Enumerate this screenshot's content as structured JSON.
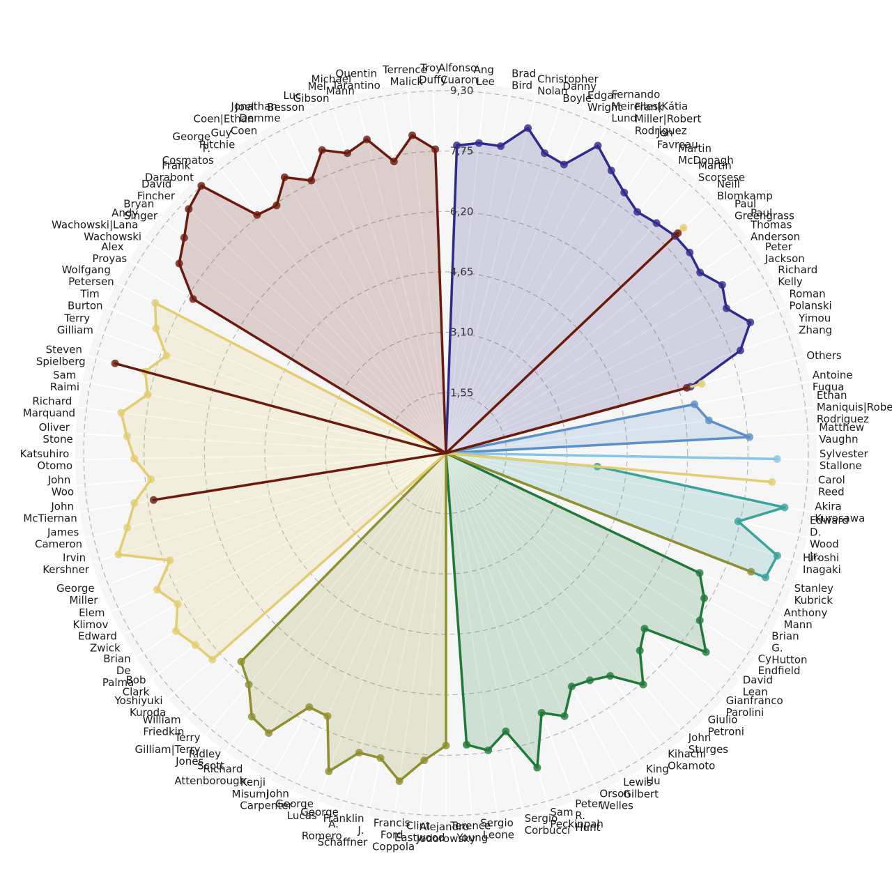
{
  "chart_data": {
    "type": "radar",
    "categories": [
      "Alfonso Cuaron",
      "Ang Lee",
      "Brad Bird",
      "Christopher Nolan",
      "Danny Boyle",
      "Edgar Wright",
      "Fernando Meirelles|Kátia Lund",
      "Frank Miller|Robert Rodriguez",
      "Jon Favreau",
      "Martin McDonagh",
      "Martin Scorsese",
      "Neill Blomkamp",
      "Paul Greengrass",
      "Paul Thomas Anderson",
      "Peter Jackson",
      "Richard Kelly",
      "Roman Polanski",
      "Yimou Zhang",
      "Others",
      "Antoine Fuqua",
      "Ethan Maniquis|Robert Rodriguez",
      "Matthew Vaughn",
      "Sylvester Stallone",
      "Carol Reed",
      "Akira Kurosawa",
      "Edward D. Wood Jr.",
      "Hiroshi Inagaki",
      "Stanley Kubrick",
      "Anthony Mann",
      "Brian G. Hutton",
      "Cy Endfield",
      "David Lean",
      "Gianfranco Parolini",
      "Giulio Petroni",
      "John Sturges",
      "Kihachi Okamoto",
      "King Hu",
      "Lewis Gilbert",
      "Orson Welles",
      "Peter R. Hunt",
      "Sam Peckinpah",
      "Sergio Corbucci",
      "Sergio Leone",
      "Terence Young",
      "Alejandro Jodorowsky",
      "Clint Eastwood",
      "Francis Ford Coppola",
      "Franklin J. Schaffner",
      "George A. Romero",
      "George Lucas",
      "John Carpenter",
      "Kenji Misumi",
      "Richard Attenborough",
      "Ridley Scott",
      "Terry Gilliam|Terry Jones",
      "William Friedkin",
      "Yoshiyuki Kuroda",
      "Bob Clark",
      "Brian De Palma",
      "Edward Zwick",
      "Elem Klimov",
      "George Miller",
      "Irvin Kershner",
      "James Cameron",
      "John McTiernan",
      "John Woo",
      "Katsuhiro Otomo",
      "Oliver Stone",
      "Richard Marquand",
      "Sam Raimi",
      "Steven Spielberg",
      "Terry Gilliam",
      "Tim Burton",
      "Wolfgang Petersen",
      "Alex Proyas",
      "Andy Wachowski|Lana Wachowski",
      "Bryan Singer",
      "David Fincher",
      "Frank Darabont",
      "George P. Cosmatos",
      "Guy Ritchie",
      "Joel Coen|Ethan Coen",
      "Jonathan Demme",
      "Luc Besson",
      "Mel Gibson",
      "Michael Mann",
      "Quentin Tarantino",
      "Terrence Malick",
      "Troy Duffy"
    ],
    "ylim": [
      0,
      9.3
    ],
    "yticks": [
      {
        "value": 1.55,
        "label": "1,55"
      },
      {
        "value": 3.1,
        "label": "3,10"
      },
      {
        "value": 4.65,
        "label": "4,65"
      },
      {
        "value": 6.2,
        "label": "6,20"
      },
      {
        "value": 7.75,
        "label": "7,75"
      },
      {
        "value": 9.3,
        "label": "9,30"
      }
    ],
    "grid": true,
    "series": [
      {
        "color": "#2f2a8c",
        "values": [
          7.9,
          8.0,
          8.0,
          8.6,
          8.1,
          8.0,
          8.8,
          8.4,
          8.1,
          7.9,
          8.0,
          8.1,
          8.1,
          8.0,
          8.3,
          8.1,
          8.5,
          8.0,
          6.5,
          null,
          null,
          null,
          null,
          null,
          null,
          null,
          null,
          null,
          null,
          null,
          null,
          null,
          null,
          null,
          null,
          null,
          null,
          null,
          null,
          null,
          null,
          null,
          null,
          null,
          null,
          null,
          null,
          null,
          null,
          null,
          null,
          null,
          null,
          null,
          null,
          null,
          null,
          null,
          null,
          null,
          null,
          null,
          null,
          null,
          null,
          null,
          null,
          null,
          null,
          null,
          null,
          null,
          null,
          null,
          null,
          null,
          null,
          null,
          null,
          null,
          null,
          null,
          null,
          null,
          null,
          null,
          null,
          null,
          null
        ]
      },
      {
        "color": "#5b8fc9",
        "values": [
          null,
          null,
          null,
          null,
          null,
          null,
          null,
          null,
          null,
          null,
          null,
          null,
          null,
          null,
          null,
          null,
          null,
          null,
          null,
          6.5,
          6.8,
          7.8,
          null,
          null,
          null,
          null,
          null,
          null,
          null,
          null,
          null,
          null,
          null,
          null,
          null,
          null,
          null,
          null,
          null,
          null,
          null,
          null,
          null,
          null,
          null,
          null,
          null,
          null,
          null,
          null,
          null,
          null,
          null,
          null,
          null,
          null,
          null,
          null,
          null,
          null,
          null,
          null,
          null,
          null,
          null,
          null,
          null,
          null,
          null,
          null,
          null,
          null,
          null,
          null,
          null,
          null,
          null,
          null,
          null,
          null,
          null,
          null,
          null,
          null,
          null,
          null,
          null,
          null,
          null
        ]
      },
      {
        "color": "#86c5e8",
        "values": [
          null,
          null,
          null,
          null,
          null,
          null,
          null,
          null,
          null,
          null,
          null,
          null,
          null,
          null,
          null,
          null,
          null,
          null,
          null,
          null,
          null,
          null,
          8.5,
          null,
          null,
          null,
          null,
          null,
          null,
          null,
          null,
          null,
          null,
          null,
          null,
          null,
          null,
          null,
          null,
          null,
          null,
          null,
          null,
          null,
          null,
          null,
          null,
          null,
          null,
          null,
          null,
          null,
          null,
          null,
          null,
          null,
          null,
          null,
          null,
          null,
          null,
          null,
          null,
          null,
          null,
          null,
          null,
          null,
          null,
          null,
          null,
          null,
          null,
          null,
          null,
          null,
          null,
          null,
          null,
          null,
          null,
          null,
          null,
          null,
          null,
          null,
          null,
          null,
          null
        ]
      },
      {
        "color": "#3aa39a",
        "values": [
          null,
          null,
          null,
          null,
          null,
          null,
          null,
          null,
          null,
          null,
          null,
          null,
          null,
          null,
          null,
          null,
          null,
          null,
          null,
          null,
          null,
          null,
          null,
          3.9,
          8.8,
          7.7,
          8.9,
          8.8,
          null,
          null,
          null,
          null,
          null,
          null,
          null,
          null,
          null,
          null,
          null,
          null,
          null,
          null,
          null,
          null,
          null,
          null,
          null,
          null,
          null,
          null,
          null,
          null,
          null,
          null,
          null,
          null,
          null,
          null,
          null,
          null,
          null,
          null,
          null,
          null,
          null,
          null,
          null,
          null,
          null,
          null,
          null,
          null,
          null,
          null,
          null,
          null,
          null,
          null,
          null,
          null,
          null,
          null,
          null,
          null,
          null,
          null,
          null,
          null,
          null
        ]
      },
      {
        "color": "#1f7a3a",
        "values": [
          null,
          null,
          null,
          null,
          null,
          null,
          null,
          null,
          null,
          null,
          null,
          null,
          null,
          null,
          null,
          null,
          null,
          null,
          null,
          null,
          null,
          null,
          null,
          null,
          null,
          null,
          null,
          null,
          7.2,
          7.6,
          7.8,
          8.4,
          6.8,
          7.1,
          7.8,
          7.1,
          6.9,
          6.8,
          7.4,
          7.1,
          8.4,
          7.3,
          7.7,
          7.5,
          null,
          null,
          null,
          null,
          null,
          null,
          null,
          null,
          null,
          null,
          null,
          null,
          null,
          null,
          null,
          null,
          null,
          null,
          null,
          null,
          null,
          null,
          null,
          null,
          null,
          null,
          null,
          null,
          null,
          null,
          null,
          null,
          null,
          null,
          null,
          null,
          null,
          null,
          null,
          null,
          null,
          null,
          null,
          null,
          null
        ]
      },
      {
        "color": "#8f8f2e",
        "values": [
          null,
          null,
          null,
          null,
          null,
          null,
          null,
          null,
          null,
          null,
          null,
          null,
          null,
          null,
          null,
          null,
          null,
          null,
          null,
          null,
          null,
          null,
          null,
          null,
          null,
          null,
          null,
          8.4,
          null,
          null,
          null,
          null,
          null,
          null,
          null,
          null,
          null,
          null,
          null,
          null,
          null,
          null,
          null,
          null,
          7.5,
          7.9,
          8.5,
          8.0,
          8.0,
          8.7,
          7.4,
          7.4,
          8.5,
          8.4,
          7.8,
          7.5,
          null,
          null,
          null,
          null,
          null,
          null,
          null,
          null,
          null,
          null,
          null,
          null,
          null,
          null,
          null,
          null,
          null,
          null,
          null,
          null,
          null,
          null,
          null,
          null,
          null,
          null,
          null,
          null,
          null,
          null,
          null,
          null,
          null
        ]
      },
      {
        "color": "#e2cd70",
        "values": [
          null,
          null,
          null,
          null,
          null,
          null,
          null,
          null,
          null,
          null,
          null,
          8.4,
          null,
          null,
          null,
          null,
          null,
          null,
          6.8,
          null,
          null,
          null,
          null,
          8.4,
          null,
          null,
          null,
          null,
          null,
          null,
          null,
          null,
          null,
          null,
          null,
          null,
          null,
          null,
          null,
          null,
          null,
          null,
          null,
          null,
          null,
          null,
          null,
          null,
          null,
          null,
          null,
          null,
          null,
          null,
          null,
          null,
          8.0,
          8.1,
          8.3,
          7.9,
          8.2,
          7.6,
          8.8,
          8.4,
          8.1,
          7.6,
          8.0,
          8.2,
          8.4,
          7.8,
          8.0,
          7.6,
          8.1,
          8.4,
          null,
          null,
          null,
          null,
          null,
          null,
          null,
          null,
          null,
          null,
          null,
          null,
          null,
          null,
          null
        ]
      },
      {
        "color": "#6b1a0e",
        "values": [
          null,
          null,
          null,
          null,
          null,
          null,
          null,
          null,
          null,
          null,
          null,
          8.2,
          null,
          null,
          null,
          null,
          null,
          null,
          6.4,
          null,
          null,
          null,
          null,
          null,
          null,
          null,
          null,
          null,
          null,
          null,
          null,
          null,
          null,
          null,
          null,
          null,
          null,
          null,
          null,
          null,
          null,
          null,
          null,
          null,
          null,
          null,
          null,
          null,
          null,
          null,
          null,
          null,
          null,
          null,
          null,
          null,
          null,
          null,
          null,
          null,
          null,
          null,
          null,
          null,
          7.6,
          null,
          null,
          null,
          null,
          null,
          8.8,
          null,
          null,
          null,
          7.6,
          8.4,
          8.7,
          9.1,
          9.3,
          7.8,
          7.7,
          8.2,
          7.8,
          8.4,
          8.1,
          8.3,
          7.6,
          8.2,
          7.8
        ]
      }
    ]
  }
}
